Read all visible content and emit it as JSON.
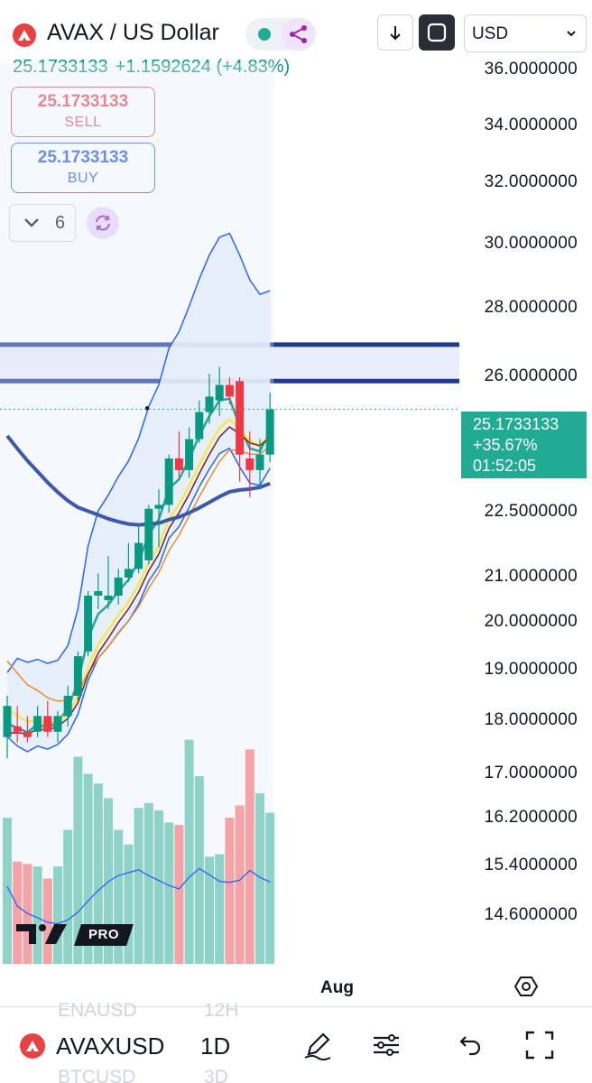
{
  "header": {
    "symbol_title": "AVAX / US Dollar",
    "logo_icon": "avalanche-logo-icon",
    "status_dot_color": "#22ab94",
    "share_icon": "share-icon",
    "download_icon": "arrow-down-icon",
    "fullscreen_icon": "fullscreen-icon",
    "currency_select": "USD"
  },
  "quote": {
    "price": "25.1733133",
    "change": "+1.1592624 (+4.83%)",
    "color": "#089981"
  },
  "trade_buttons": {
    "sell_price": "25.1733133",
    "sell_label": "SELL",
    "buy_price": "25.1733133",
    "buy_label": "BUY"
  },
  "indicators": {
    "count": "6",
    "sync_icon": "sync-icon"
  },
  "price_axis": {
    "ticks": [
      "36.0000000",
      "34.0000000",
      "32.0000000",
      "30.0000000",
      "28.0000000",
      "26.0000000",
      "22.5000000",
      "21.0000000",
      "20.0000000",
      "19.0000000",
      "18.0000000",
      "17.0000000",
      "16.2000000",
      "15.4000000",
      "14.6000000"
    ],
    "current_tag": {
      "price": "25.1733133",
      "change_pct": "+35.67%",
      "countdown": "01:52:05",
      "color": "#22ab94"
    }
  },
  "time_axis": {
    "label": "Aug"
  },
  "watermark": {
    "brand": "TradingView PRO",
    "badge": "PRO"
  },
  "bottom_bar": {
    "symbol": "AVAXUSD",
    "interval": "1D",
    "ghost_symbol_above": "ENAUSD",
    "ghost_interval_above": "12H",
    "ghost_symbol_below": "BTCUSD",
    "ghost_interval_below": "3D",
    "icons": [
      "drawing-pen-icon",
      "indicator-settings-icon",
      "undo-icon",
      "fullscreen-icon"
    ]
  },
  "chart_data": {
    "type": "candlestick",
    "symbol": "AVAXUSD",
    "interval": "1D",
    "current_price": 25.1733133,
    "candles": [
      {
        "o": 17.7,
        "h": 18.5,
        "l": 17.3,
        "c": 18.3
      },
      {
        "o": 17.9,
        "h": 18.3,
        "l": 17.6,
        "c": 17.8
      },
      {
        "o": 17.8,
        "h": 18.1,
        "l": 17.6,
        "c": 17.7
      },
      {
        "o": 17.8,
        "h": 18.3,
        "l": 17.7,
        "c": 18.1
      },
      {
        "o": 18.1,
        "h": 18.4,
        "l": 17.7,
        "c": 17.8
      },
      {
        "o": 17.8,
        "h": 18.2,
        "l": 17.6,
        "c": 18.1
      },
      {
        "o": 18.1,
        "h": 18.7,
        "l": 17.9,
        "c": 18.5
      },
      {
        "o": 18.5,
        "h": 19.4,
        "l": 18.4,
        "c": 19.3
      },
      {
        "o": 19.4,
        "h": 20.7,
        "l": 19.3,
        "c": 20.6
      },
      {
        "o": 20.6,
        "h": 21.1,
        "l": 20.3,
        "c": 20.7
      },
      {
        "o": 20.5,
        "h": 21.5,
        "l": 20.3,
        "c": 20.6
      },
      {
        "o": 20.6,
        "h": 21.2,
        "l": 20.4,
        "c": 21.0
      },
      {
        "o": 21.0,
        "h": 21.8,
        "l": 20.9,
        "c": 21.2
      },
      {
        "o": 21.2,
        "h": 22.2,
        "l": 21.1,
        "c": 21.8
      },
      {
        "o": 21.4,
        "h": 22.7,
        "l": 21.3,
        "c": 22.6
      },
      {
        "o": 22.6,
        "h": 23.1,
        "l": 21.7,
        "c": 22.7
      },
      {
        "o": 22.7,
        "h": 24.0,
        "l": 22.5,
        "c": 23.9
      },
      {
        "o": 23.9,
        "h": 24.6,
        "l": 23.4,
        "c": 23.6
      },
      {
        "o": 23.6,
        "h": 24.7,
        "l": 23.4,
        "c": 24.4
      },
      {
        "o": 24.4,
        "h": 25.4,
        "l": 24.3,
        "c": 25.1
      },
      {
        "o": 25.1,
        "h": 26.1,
        "l": 24.8,
        "c": 25.5
      },
      {
        "o": 25.4,
        "h": 26.3,
        "l": 25.0,
        "c": 25.8
      },
      {
        "o": 25.8,
        "h": 26.0,
        "l": 25.3,
        "c": 25.5
      },
      {
        "o": 25.9,
        "h": 26.0,
        "l": 23.3,
        "c": 24.0
      },
      {
        "o": 23.9,
        "h": 24.6,
        "l": 22.9,
        "c": 23.6
      },
      {
        "o": 23.6,
        "h": 24.4,
        "l": 23.1,
        "c": 24.0
      },
      {
        "o": 24.0,
        "h": 25.6,
        "l": 23.8,
        "c": 25.17
      }
    ],
    "volume_relative": [
      0.6,
      0.42,
      0.41,
      0.4,
      0.35,
      0.4,
      0.55,
      0.85,
      0.78,
      0.74,
      0.68,
      0.55,
      0.49,
      0.64,
      0.66,
      0.63,
      0.58,
      0.57,
      0.92,
      0.77,
      0.44,
      0.45,
      0.6,
      0.65,
      0.88,
      0.7,
      0.62
    ],
    "horizontal_zone": {
      "top": 26.95,
      "bottom": 25.9
    },
    "overlays": [
      "Bollinger Bands",
      "EMA 20",
      "EMA 50",
      "EMA 100",
      "EMA 200",
      "SMA 200"
    ],
    "yticks": [
      36,
      34,
      32,
      30,
      28,
      26,
      22.5,
      21,
      20,
      19,
      18,
      17,
      16.2,
      15.4,
      14.6
    ],
    "xlabel": "Aug"
  }
}
